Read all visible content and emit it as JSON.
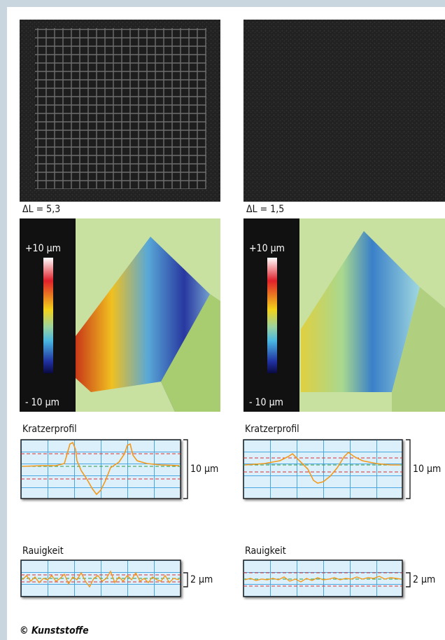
{
  "panels": [
    {
      "delta_label": "ΔL = 5,3",
      "scale_top": "+10 µm",
      "scale_bottom": "- 10 µm",
      "profile_title": "Kratzerprofil",
      "profile_scale": "10 µm",
      "roughness_title": "Rauigkeit",
      "roughness_scale": "2 µm"
    },
    {
      "delta_label": "ΔL = 1,5",
      "scale_top": "+10 µm",
      "scale_bottom": "- 10 µm",
      "profile_title": "Kratzerprofil",
      "profile_scale": "10 µm",
      "roughness_title": "Rauigkeit",
      "roughness_scale": "2 µm"
    }
  ],
  "credit": "© Kunststoffe"
}
